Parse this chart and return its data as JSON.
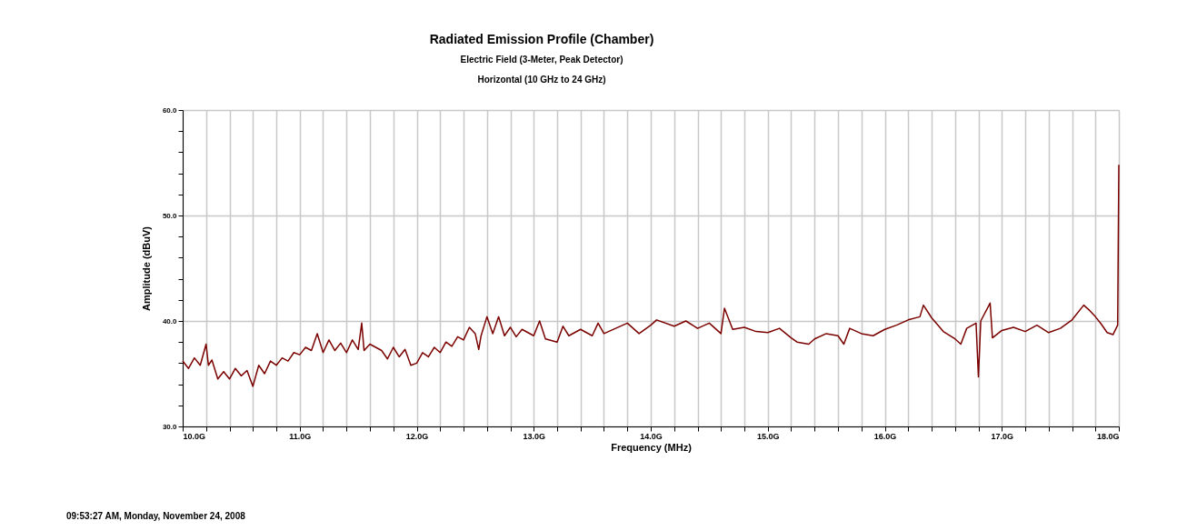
{
  "chart_data": {
    "type": "line",
    "title": "Radiated Emission Profile (Chamber)",
    "subtitle": [
      "Electric Field (3-Meter, Peak Detector)",
      "Horizontal (10 GHz to 24 GHz)"
    ],
    "xlabel": "Frequency (MHz)",
    "ylabel": "Amplitude (dBuV)",
    "annotations": [
      "09:53:27 AM, Monday, November 24, 2008"
    ],
    "xlim": [
      10,
      18
    ],
    "ylim": [
      30,
      60
    ],
    "xticks": [
      {
        "value": 10,
        "label": "10.0G"
      },
      {
        "value": 10.2,
        "label": null
      },
      {
        "value": 10.4,
        "label": null
      },
      {
        "value": 10.6,
        "label": null
      },
      {
        "value": 10.8,
        "label": null
      },
      {
        "value": 11,
        "label": "11.0G"
      },
      {
        "value": 11.2,
        "label": null
      },
      {
        "value": 11.4,
        "label": null
      },
      {
        "value": 11.6,
        "label": null
      },
      {
        "value": 11.8,
        "label": null
      },
      {
        "value": 12,
        "label": "12.0G"
      },
      {
        "value": 12.2,
        "label": null
      },
      {
        "value": 12.4,
        "label": null
      },
      {
        "value": 12.6,
        "label": null
      },
      {
        "value": 12.8,
        "label": null
      },
      {
        "value": 13,
        "label": "13.0G"
      },
      {
        "value": 13.2,
        "label": null
      },
      {
        "value": 13.4,
        "label": null
      },
      {
        "value": 13.6,
        "label": null
      },
      {
        "value": 13.8,
        "label": null
      },
      {
        "value": 14,
        "label": "14.0G"
      },
      {
        "value": 14.2,
        "label": null
      },
      {
        "value": 14.4,
        "label": null
      },
      {
        "value": 14.6,
        "label": null
      },
      {
        "value": 14.8,
        "label": null
      },
      {
        "value": 15,
        "label": "15.0G"
      },
      {
        "value": 15.2,
        "label": null
      },
      {
        "value": 15.4,
        "label": null
      },
      {
        "value": 15.6,
        "label": null
      },
      {
        "value": 15.8,
        "label": null
      },
      {
        "value": 16,
        "label": "16.0G"
      },
      {
        "value": 16.2,
        "label": null
      },
      {
        "value": 16.4,
        "label": null
      },
      {
        "value": 16.6,
        "label": null
      },
      {
        "value": 16.8,
        "label": null
      },
      {
        "value": 17,
        "label": "17.0G"
      },
      {
        "value": 17.2,
        "label": null
      },
      {
        "value": 17.4,
        "label": null
      },
      {
        "value": 17.6,
        "label": null
      },
      {
        "value": 17.8,
        "label": null
      },
      {
        "value": 18,
        "label": "18.0G"
      }
    ],
    "yticks": [
      {
        "value": 30,
        "label": "30.0"
      },
      {
        "value": 32,
        "label": null
      },
      {
        "value": 34,
        "label": null
      },
      {
        "value": 36,
        "label": null
      },
      {
        "value": 38,
        "label": null
      },
      {
        "value": 40,
        "label": "40.0"
      },
      {
        "value": 42,
        "label": null
      },
      {
        "value": 44,
        "label": null
      },
      {
        "value": 46,
        "label": null
      },
      {
        "value": 48,
        "label": null
      },
      {
        "value": 50,
        "label": "50.0"
      },
      {
        "value": 52,
        "label": null
      },
      {
        "value": 54,
        "label": null
      },
      {
        "value": 56,
        "label": null
      },
      {
        "value": 58,
        "label": null
      },
      {
        "value": 60,
        "label": "60.0"
      }
    ],
    "grid": true,
    "legend": false,
    "marker": "none",
    "line_style": "solid",
    "series": [
      {
        "color": "#7b0000",
        "x": [
          10.0,
          10.05,
          10.1,
          10.15,
          10.2,
          10.22,
          10.25,
          10.3,
          10.35,
          10.4,
          10.45,
          10.5,
          10.55,
          10.6,
          10.65,
          10.7,
          10.75,
          10.8,
          10.85,
          10.9,
          10.95,
          11.0,
          11.05,
          11.1,
          11.15,
          11.2,
          11.25,
          11.3,
          11.35,
          11.4,
          11.45,
          11.5,
          11.53,
          11.55,
          11.6,
          11.7,
          11.75,
          11.8,
          11.85,
          11.9,
          11.95,
          12.0,
          12.05,
          12.1,
          12.15,
          12.2,
          12.25,
          12.3,
          12.35,
          12.4,
          12.45,
          12.5,
          12.53,
          12.55,
          12.6,
          12.65,
          12.7,
          12.75,
          12.8,
          12.85,
          12.9,
          13.0,
          13.05,
          13.1,
          13.2,
          13.25,
          13.3,
          13.4,
          13.5,
          13.55,
          13.6,
          13.7,
          13.8,
          13.9,
          14.0,
          14.05,
          14.2,
          14.3,
          14.4,
          14.5,
          14.6,
          14.63,
          14.7,
          14.8,
          14.9,
          15.0,
          15.1,
          15.2,
          15.25,
          15.35,
          15.4,
          15.5,
          15.6,
          15.65,
          15.7,
          15.8,
          15.9,
          16.0,
          16.1,
          16.2,
          16.3,
          16.33,
          16.4,
          16.5,
          16.6,
          16.65,
          16.7,
          16.78,
          16.8,
          16.82,
          16.9,
          16.92,
          17.0,
          17.1,
          17.2,
          17.3,
          17.4,
          17.5,
          17.6,
          17.7,
          17.75,
          17.8,
          17.85,
          17.9,
          17.95,
          17.99,
          18.0
        ],
        "values": [
          36.2,
          35.5,
          36.5,
          35.8,
          37.8,
          35.8,
          36.3,
          34.5,
          35.2,
          34.5,
          35.5,
          34.8,
          35.3,
          33.8,
          35.8,
          35.0,
          36.2,
          35.8,
          36.5,
          36.2,
          37.0,
          36.8,
          37.5,
          37.2,
          38.8,
          37.0,
          38.2,
          37.2,
          37.9,
          37.0,
          38.2,
          37.3,
          39.8,
          37.2,
          37.8,
          37.2,
          36.4,
          37.5,
          36.6,
          37.3,
          35.8,
          36.0,
          37.0,
          36.6,
          37.5,
          37.0,
          38.0,
          37.6,
          38.5,
          38.2,
          39.4,
          38.8,
          37.3,
          38.6,
          40.4,
          38.8,
          40.4,
          38.6,
          39.4,
          38.5,
          39.2,
          38.6,
          40.0,
          38.3,
          38.0,
          39.5,
          38.6,
          39.2,
          38.6,
          39.8,
          38.8,
          39.3,
          39.8,
          38.8,
          39.6,
          40.1,
          39.5,
          40.0,
          39.3,
          39.8,
          38.8,
          41.2,
          39.2,
          39.4,
          39.0,
          38.9,
          39.3,
          38.4,
          38.0,
          37.8,
          38.3,
          38.8,
          38.6,
          37.8,
          39.3,
          38.8,
          38.6,
          39.2,
          39.6,
          40.1,
          40.4,
          41.5,
          40.3,
          39.0,
          38.3,
          37.8,
          39.3,
          39.8,
          34.7,
          40.0,
          41.7,
          38.4,
          39.1,
          39.4,
          39.0,
          39.6,
          38.9,
          39.3,
          40.1,
          41.5,
          41.0,
          40.4,
          39.7,
          38.9,
          38.7,
          39.6,
          54.8
        ]
      }
    ]
  }
}
